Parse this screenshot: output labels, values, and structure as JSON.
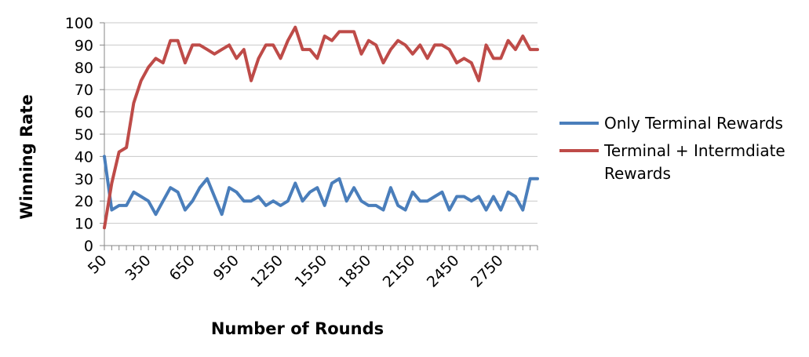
{
  "chart_data": {
    "type": "line",
    "xlabel": "Number of Rounds",
    "ylabel": "Winning Rate",
    "ylim": [
      0,
      100
    ],
    "yticks": [
      "0",
      "10",
      "20",
      "30",
      "40",
      "50",
      "60",
      "70",
      "80",
      "90",
      "100"
    ],
    "x_tick_labels": [
      "50",
      "350",
      "650",
      "950",
      "1250",
      "1550",
      "1850",
      "2150",
      "2450",
      "2750"
    ],
    "x": [
      50,
      100,
      150,
      200,
      250,
      300,
      350,
      400,
      450,
      500,
      550,
      600,
      650,
      700,
      750,
      800,
      850,
      900,
      950,
      1000,
      1050,
      1100,
      1150,
      1200,
      1250,
      1300,
      1350,
      1400,
      1450,
      1500,
      1550,
      1600,
      1650,
      1700,
      1750,
      1800,
      1850,
      1900,
      1950,
      2000,
      2050,
      2100,
      2150,
      2200,
      2250,
      2300,
      2350,
      2400,
      2450,
      2500,
      2550,
      2600,
      2650,
      2700,
      2750,
      2800,
      2850,
      2900,
      2950,
      3000
    ],
    "grid": "horizontal",
    "legend_position": "right",
    "series": [
      {
        "name": "Only Terminal Rewards",
        "color": "#4a7ebb",
        "values": [
          40,
          16,
          18,
          18,
          24,
          22,
          20,
          14,
          20,
          26,
          24,
          16,
          20,
          26,
          30,
          22,
          14,
          26,
          24,
          20,
          20,
          22,
          18,
          20,
          18,
          20,
          28,
          20,
          24,
          26,
          18,
          28,
          30,
          20,
          26,
          20,
          18,
          18,
          16,
          26,
          18,
          16,
          24,
          20,
          20,
          22,
          24,
          16,
          22,
          22,
          20,
          22,
          16,
          22,
          16,
          24,
          22,
          16,
          30,
          30
        ]
      },
      {
        "name": "Terminal + Intermdiate\nRewards",
        "color": "#be4b48",
        "values": [
          8,
          28,
          42,
          44,
          64,
          74,
          80,
          84,
          82,
          92,
          92,
          82,
          90,
          90,
          88,
          86,
          88,
          90,
          84,
          88,
          74,
          84,
          90,
          90,
          84,
          92,
          98,
          88,
          88,
          84,
          94,
          92,
          96,
          96,
          96,
          86,
          92,
          90,
          82,
          88,
          92,
          90,
          86,
          90,
          84,
          90,
          90,
          88,
          82,
          84,
          82,
          74,
          90,
          84,
          84,
          92,
          88,
          94,
          88,
          88
        ]
      }
    ]
  }
}
